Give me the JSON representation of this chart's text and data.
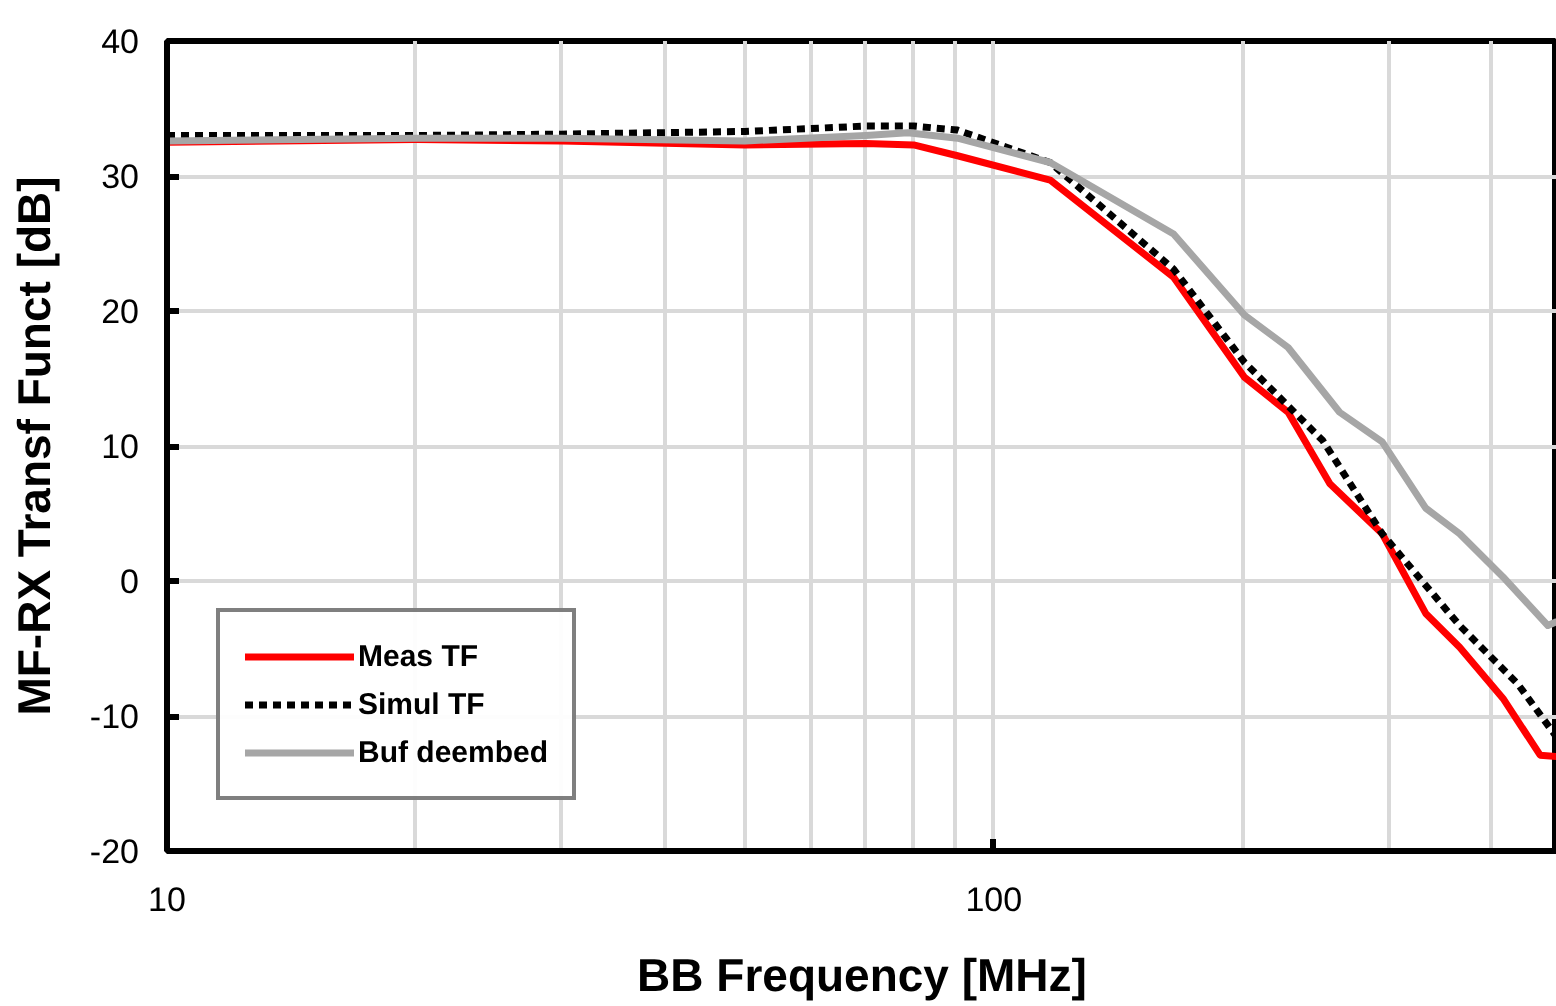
{
  "chart_data": {
    "type": "line",
    "xlabel": "BB Frequency [MHz]",
    "ylabel": "MF-RX Transf Funct [dB]",
    "log": "x",
    "xlim": [
      10,
      480
    ],
    "xticks": [
      10,
      100
    ],
    "ylim": [
      -20,
      40
    ],
    "yticks": [
      -20,
      -10,
      0,
      10,
      20,
      30,
      40
    ],
    "grid": true,
    "legend": "bottom left",
    "series": [
      {
        "name": "Meas TF",
        "color": "#ff0000",
        "line_style": "solid",
        "x": [
          10,
          20,
          30,
          50,
          70,
          80,
          90.4,
          117,
          165,
          201,
          227,
          255,
          295,
          333,
          366,
          413,
          458,
          480
        ],
        "values": [
          32.5,
          32.7,
          32.6,
          32.3,
          32.4,
          32.3,
          31.5,
          29.7,
          22.5,
          15.1,
          12.5,
          7.2,
          3.5,
          -2.4,
          -4.9,
          -8.7,
          -12.9,
          -13
        ]
      },
      {
        "name": "Simul TF",
        "color": "#000000",
        "line_style": "dashed",
        "x": [
          10,
          20,
          30,
          50,
          70,
          80,
          90.4,
          117,
          165,
          201,
          250,
          295,
          366,
          430,
          480
        ],
        "values": [
          33,
          33,
          33.1,
          33.3,
          33.7,
          33.7,
          33.4,
          31,
          23.1,
          16.2,
          10.4,
          3.5,
          -3.3,
          -7.6,
          -11.6
        ]
      },
      {
        "name": "Buf deembed",
        "color": "#a6a6a6",
        "line_style": "solid",
        "x": [
          10,
          20,
          30,
          50,
          70,
          78.7,
          90.4,
          117,
          165,
          201,
          227,
          262,
          295,
          333,
          366,
          413,
          468,
          480
        ],
        "values": [
          32.6,
          32.8,
          32.8,
          32.6,
          33,
          33.2,
          32.8,
          31,
          25.7,
          19.7,
          17.3,
          12.5,
          10.3,
          5.4,
          3.5,
          0.3,
          -3.3,
          -3
        ]
      }
    ]
  }
}
